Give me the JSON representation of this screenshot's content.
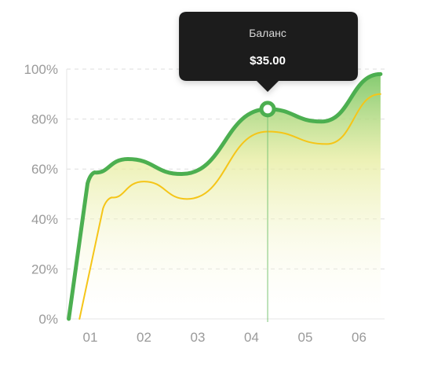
{
  "chart_data": {
    "type": "area",
    "title": "",
    "xlabel": "",
    "ylabel": "",
    "categories": [
      "01",
      "02",
      "03",
      "04",
      "05",
      "06"
    ],
    "y_ticks": [
      "0%",
      "20%",
      "40%",
      "60%",
      "80%",
      "100%"
    ],
    "ylim": [
      0,
      100
    ],
    "grid": true,
    "series": [
      {
        "color": "#4caf50",
        "x": [
          0.6,
          1.0,
          1.7,
          2.7,
          4.3,
          5.3,
          6.4
        ],
        "y": [
          0,
          58,
          64,
          58,
          84,
          79,
          98
        ]
      },
      {
        "color": "#f5c518",
        "x": [
          0.8,
          1.3,
          2.0,
          2.8,
          4.3,
          5.4,
          6.4
        ],
        "y": [
          0,
          48,
          55,
          48,
          75,
          70,
          90
        ]
      }
    ],
    "tooltip": {
      "title": "Баланс",
      "value": "$35.00",
      "x": 4.3,
      "y": 84
    }
  }
}
